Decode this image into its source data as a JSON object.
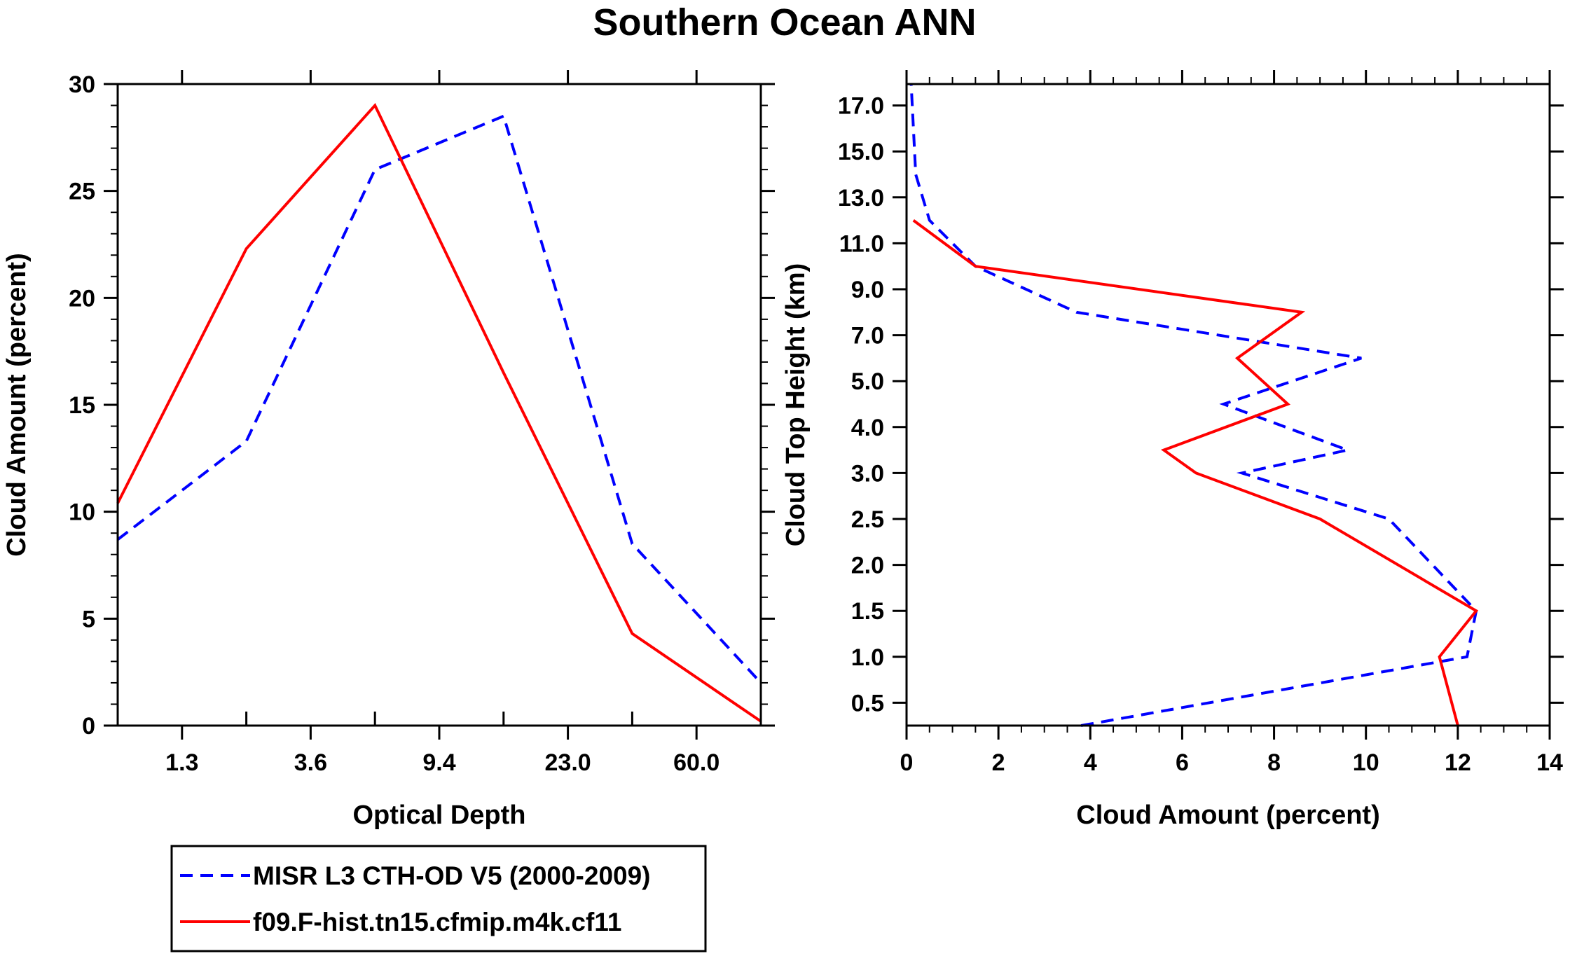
{
  "figure_title": "Southern Ocean ANN",
  "chart_data": [
    {
      "type": "line",
      "xlabel": "Optical Depth",
      "ylabel": "Cloud Amount (percent)",
      "xscale": "category-bin-index",
      "xlim": [
        0,
        5
      ],
      "ylim": [
        0,
        30
      ],
      "x_tick_labels": [
        "1.3",
        "3.6",
        "9.4",
        "23.0",
        "60.0"
      ],
      "y_tick_labels": [
        "0",
        "5",
        "10",
        "15",
        "20",
        "25",
        "30"
      ],
      "series": [
        {
          "name": "MISR L3 CTH-OD V5 (2000-2009)",
          "color": "#0000ff",
          "style": "dashed",
          "x": [
            0,
            1,
            2,
            3,
            4,
            5
          ],
          "values": [
            8.7,
            13.3,
            26.0,
            28.5,
            8.5,
            2.0
          ]
        },
        {
          "name": "f09.F-hist.tn15.cfmip.m4k.cf11",
          "color": "#ff0000",
          "style": "solid",
          "x": [
            0,
            1,
            2,
            3,
            4,
            5
          ],
          "values": [
            10.4,
            22.3,
            29.0,
            16.5,
            4.3,
            0.2
          ]
        }
      ]
    },
    {
      "type": "line",
      "orientation": "vertical-profile",
      "xlabel": "Cloud Amount (percent)",
      "ylabel": "Cloud Top Height (km)",
      "xlim": [
        0,
        14
      ],
      "x_tick_labels": [
        "0",
        "2",
        "4",
        "6",
        "8",
        "10",
        "12",
        "14"
      ],
      "y_tick_labels": [
        "0.5",
        "1.0",
        "1.5",
        "2.0",
        "2.5",
        "3.0",
        "4.0",
        "5.0",
        "7.0",
        "9.0",
        "11.0",
        "13.0",
        "15.0",
        "17.0"
      ],
      "series": [
        {
          "name": "MISR L3 CTH-OD V5 (2000-2009)",
          "color": "#0000ff",
          "style": "dashed",
          "levels": [
            "0.0",
            "1.0",
            "1.5",
            "2.5",
            "3.0",
            "3.5",
            "4.5",
            "6.0",
            "8.0",
            "10.0",
            "12.0",
            "14.0",
            "18.0"
          ],
          "values": [
            3.8,
            12.2,
            12.4,
            10.5,
            7.3,
            9.6,
            6.9,
            9.9,
            3.7,
            1.5,
            0.5,
            0.2,
            0.1
          ]
        },
        {
          "name": "f09.F-hist.tn15.cfmip.m4k.cf11",
          "color": "#ff0000",
          "style": "solid",
          "levels": [
            "0.0",
            "1.0",
            "1.5",
            "2.5",
            "3.0",
            "3.5",
            "4.5",
            "6.0",
            "8.0",
            "10.0",
            "12.0"
          ],
          "values": [
            12.0,
            11.6,
            12.4,
            9.0,
            6.3,
            5.6,
            8.3,
            7.2,
            8.6,
            1.5,
            0.15
          ]
        }
      ]
    }
  ],
  "legend": {
    "entries": [
      "MISR L3 CTH-OD V5 (2000-2009)",
      "f09.F-hist.tn15.cfmip.m4k.cf11"
    ]
  }
}
